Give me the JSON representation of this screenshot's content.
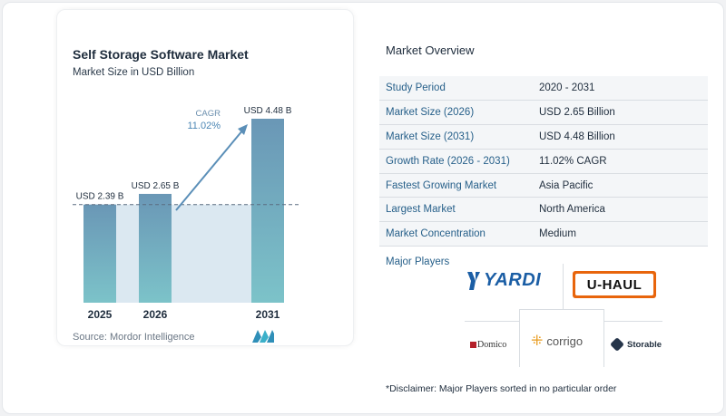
{
  "chart_data": {
    "type": "bar",
    "title": "Self Storage Software Market",
    "subtitle": "Market Size in USD Billion",
    "categories": [
      "2025",
      "2026",
      "2031"
    ],
    "values": [
      2.39,
      2.65,
      4.48
    ],
    "data_labels": [
      "USD 2.39 B",
      "USD 2.65 B",
      "USD 4.48 B"
    ],
    "cagr_label": "CAGR",
    "cagr_value": "11.02%",
    "bar_color": "#6a97b6",
    "bar_color_light": "#7cc3c9",
    "band_color": "#dbe8f1"
  },
  "source": "Source:  Mordor Intelligence",
  "overview": {
    "title": "Market Overview",
    "rows": [
      {
        "key": "Study Period",
        "value": "2020 - 2031"
      },
      {
        "key": "Market Size (2026)",
        "value": "USD 2.65 Billion"
      },
      {
        "key": "Market Size (2031)",
        "value": "USD 4.48 Billion"
      },
      {
        "key": "Growth Rate (2026 - 2031)",
        "value": "11.02% CAGR"
      },
      {
        "key": "Fastest Growing Market",
        "value": "Asia Pacific"
      },
      {
        "key": "Largest Market",
        "value": "North America"
      },
      {
        "key": "Market Concentration",
        "value": "Medium"
      }
    ]
  },
  "major_players": {
    "title": "Major Players",
    "logos": [
      "YARDI",
      "U-HAUL",
      "Domico",
      "corrigo",
      "Storable"
    ]
  },
  "disclaimer": "*Disclaimer: Major Players sorted in no particular order",
  "colors": {
    "accent": "#27608a",
    "arrow": "#5b8fb8",
    "uhaul_orange": "#e8650c",
    "yardi_blue": "#1b5ea5"
  }
}
